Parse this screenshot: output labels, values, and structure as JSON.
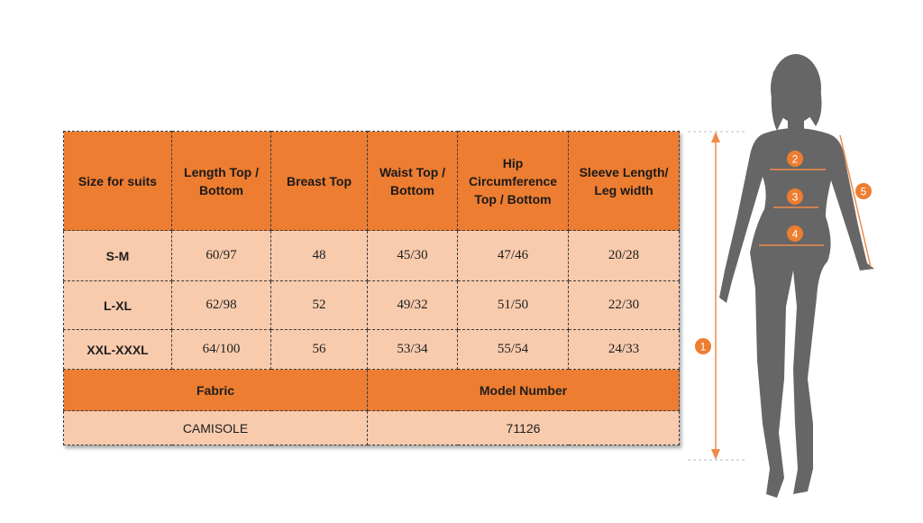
{
  "table": {
    "headers": [
      "Size for suits",
      "Length Top / Bottom",
      "Breast Top",
      "Waist Top / Bottom",
      "Hip Circumference Top / Bottom",
      "Sleeve Length/ Leg width"
    ],
    "rows": [
      {
        "size": "S-M",
        "values": [
          "60/97",
          "48",
          "45/30",
          "47/46",
          "20/28"
        ]
      },
      {
        "size": "L-XL",
        "values": [
          "62/98",
          "52",
          "49/32",
          "51/50",
          "22/30"
        ]
      },
      {
        "size": "XXL-XXXL",
        "values": [
          "64/100",
          "56",
          "53/34",
          "55/54",
          "24/33"
        ]
      }
    ],
    "fabric_label": "Fabric",
    "model_label": "Model Number",
    "fabric_value": "CAMISOLE",
    "model_value": "71126"
  },
  "figure": {
    "markers": [
      "1",
      "2",
      "3",
      "4",
      "5"
    ],
    "colors": {
      "marker": "#ed7d31",
      "silhouette": "#666666",
      "line": "#f08a4b"
    }
  }
}
